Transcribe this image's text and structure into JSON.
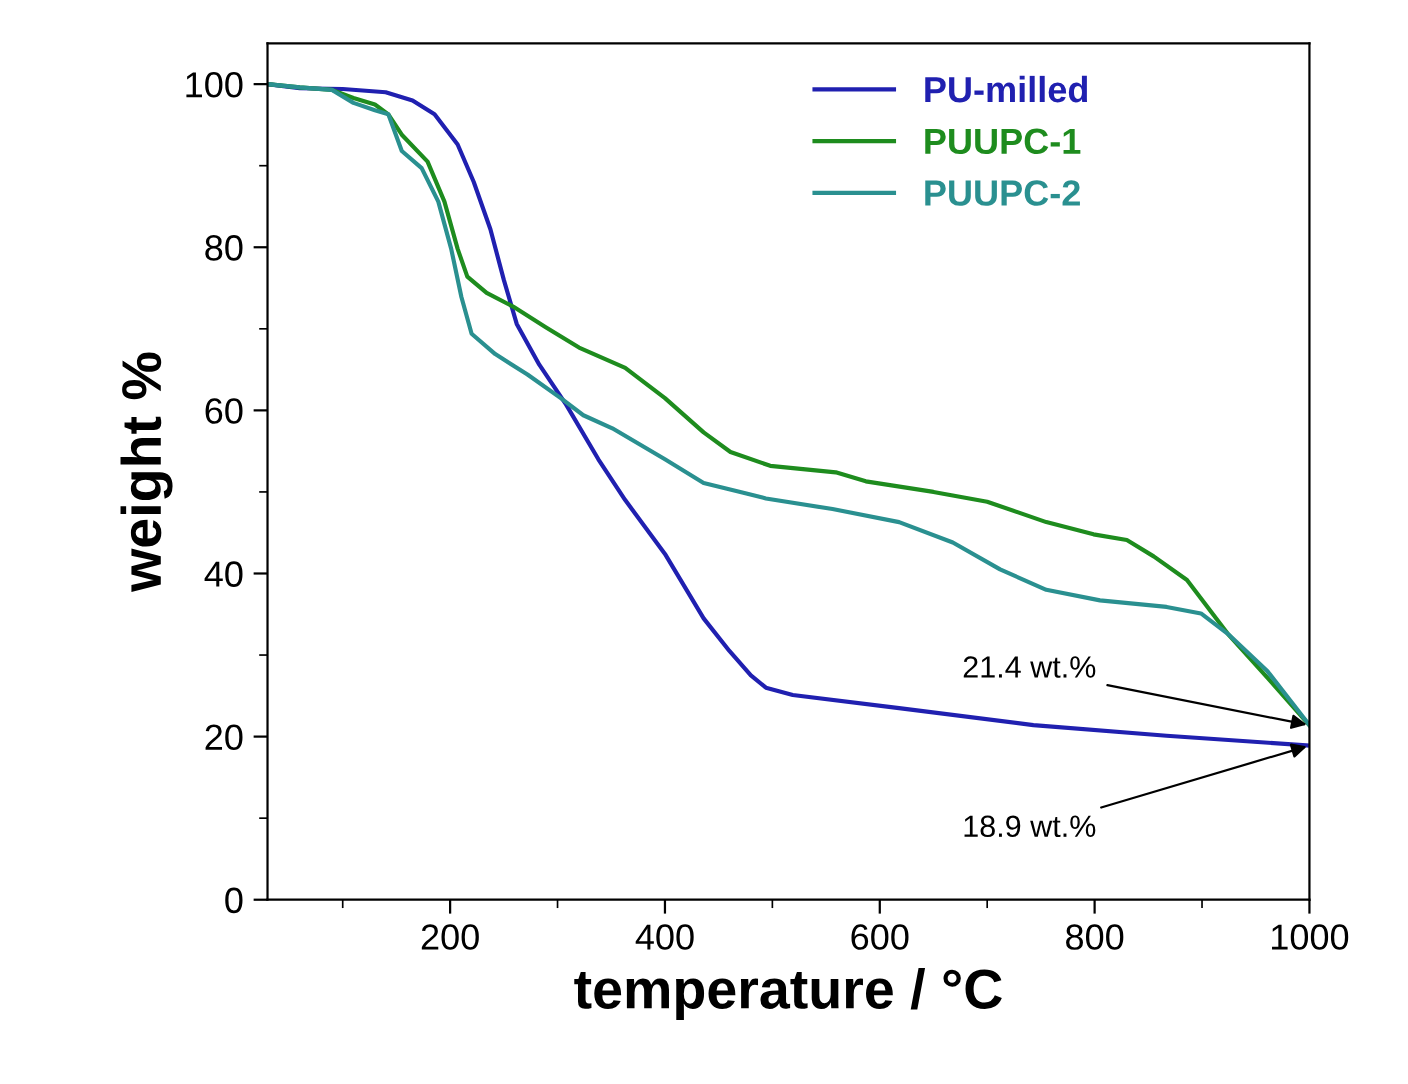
{
  "chart_data": {
    "type": "line",
    "xlabel": "temperature / °C",
    "ylabel": "weight %",
    "xlim": [
      30,
      1000
    ],
    "xticks": [
      200,
      400,
      600,
      800,
      1000
    ],
    "ylim": [
      0,
      105
    ],
    "yticks": [
      0,
      20,
      40,
      60,
      80,
      100
    ],
    "grid": false,
    "legend": "top right",
    "marker": "none",
    "line_style": "solid",
    "series": [
      {
        "name": "PU-milled",
        "color": "#2020b0",
        "x": [
          30,
          60,
          100,
          140,
          165,
          185.5,
          207,
          222,
          237.5,
          250,
          262,
          283,
          308,
          338,
          363,
          400,
          436,
          460,
          480,
          494,
          519,
          618,
          743,
          867,
          1000
        ],
        "values": [
          100,
          99.5,
          99.4,
          99,
          98,
          96.3,
          92.6,
          88,
          82.2,
          76,
          70.6,
          65.6,
          60.7,
          54,
          49,
          42.4,
          34.5,
          30.5,
          27.5,
          26,
          25.1,
          23.5,
          21.4,
          20.1,
          18.9
        ]
      },
      {
        "name": "PUUPC-1",
        "color": "#1e8c1e",
        "x": [
          30,
          60,
          90,
          110,
          130,
          142.5,
          155,
          179,
          194.7,
          207,
          216,
          234,
          259,
          289,
          320,
          363,
          400,
          436,
          461,
          498,
          559,
          587,
          650,
          700,
          755,
          799,
          830,
          855,
          886,
          924,
          961,
          1000
        ],
        "values": [
          100,
          99.6,
          99.3,
          98.3,
          97.5,
          96.3,
          93.8,
          90.5,
          85.6,
          79.8,
          76.4,
          74.4,
          72.7,
          70.2,
          67.7,
          65.2,
          61.5,
          57.3,
          54.9,
          53.2,
          52.4,
          51.3,
          50,
          48.8,
          46.3,
          44.8,
          44.1,
          42.1,
          39.2,
          32.6,
          27.2,
          21.4
        ]
      },
      {
        "name": "PUUPC-2",
        "color": "#2a9090",
        "x": [
          30,
          60,
          90,
          110,
          130,
          142.5,
          155,
          173.5,
          189,
          201,
          210.5,
          220,
          242,
          272,
          303,
          324,
          351,
          400,
          436,
          473,
          494,
          556,
          618,
          668,
          712,
          755,
          805,
          867,
          899,
          924,
          961,
          1000
        ],
        "values": [
          100,
          99.6,
          99.3,
          97.7,
          96.8,
          96.3,
          91.8,
          89.7,
          85.6,
          79.8,
          73.9,
          69.4,
          66.9,
          64.4,
          61.5,
          59.4,
          57.8,
          54,
          51.1,
          49.9,
          49.2,
          47.9,
          46.3,
          43.8,
          40.5,
          38,
          36.7,
          35.9,
          35.1,
          32.6,
          28,
          21.4
        ]
      }
    ],
    "annotations": [
      {
        "text": "21.4 wt.%",
        "x": 1000,
        "y": 21.4
      },
      {
        "text": "18.9 wt.%",
        "x": 1000,
        "y": 18.9
      }
    ]
  }
}
